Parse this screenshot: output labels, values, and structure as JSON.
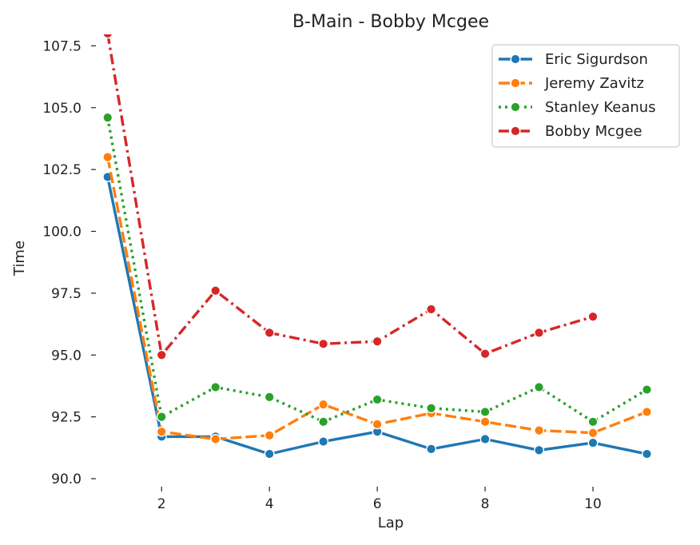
{
  "chart_data": {
    "type": "line",
    "title": "B-Main - Bobby Mcgee",
    "xlabel": "Lap",
    "ylabel": "Time",
    "xlim": [
      0.9,
      11.6
    ],
    "ylim": [
      90.0,
      107.9
    ],
    "x_ticks": [
      2,
      4,
      6,
      8,
      10
    ],
    "y_ticks": [
      90.0,
      92.5,
      95.0,
      97.5,
      100.0,
      102.5,
      105.0,
      107.5
    ],
    "x_tick_labels": [
      "2",
      "4",
      "6",
      "8",
      "10"
    ],
    "y_tick_labels": [
      "90.0",
      "92.5",
      "95.0",
      "97.5",
      "100.0",
      "102.5",
      "105.0",
      "107.5"
    ],
    "grid": false,
    "legend_position": "top-right",
    "series": [
      {
        "name": "Eric Sigurdson",
        "color": "#1f77b4",
        "dash": "solid",
        "x": [
          1,
          2,
          3,
          4,
          5,
          6,
          7,
          8,
          9,
          10,
          11
        ],
        "values": [
          102.2,
          91.7,
          91.7,
          91.0,
          91.5,
          91.9,
          91.2,
          91.6,
          91.15,
          91.45,
          91.0
        ]
      },
      {
        "name": "Jeremy Zavitz",
        "color": "#ff7f0e",
        "dash": "dashed",
        "x": [
          1,
          2,
          3,
          4,
          5,
          6,
          7,
          8,
          9,
          10,
          11
        ],
        "values": [
          103.0,
          91.9,
          91.6,
          91.75,
          93.0,
          92.2,
          92.65,
          92.3,
          91.95,
          91.85,
          92.7
        ]
      },
      {
        "name": "Stanley Keanus",
        "color": "#2ca02c",
        "dash": "dotted",
        "x": [
          1,
          2,
          3,
          4,
          5,
          6,
          7,
          8,
          9,
          10,
          11
        ],
        "values": [
          104.6,
          92.5,
          93.7,
          93.3,
          92.3,
          93.2,
          92.85,
          92.7,
          93.7,
          92.3,
          93.6
        ]
      },
      {
        "name": "Bobby Mcgee",
        "color": "#d62728",
        "dash": "dashdot",
        "x": [
          1,
          2,
          3,
          4,
          5,
          6,
          7,
          8,
          9,
          10
        ],
        "values": [
          108.0,
          95.0,
          97.6,
          95.9,
          95.45,
          95.55,
          96.85,
          95.05,
          95.9,
          96.55
        ]
      }
    ]
  }
}
